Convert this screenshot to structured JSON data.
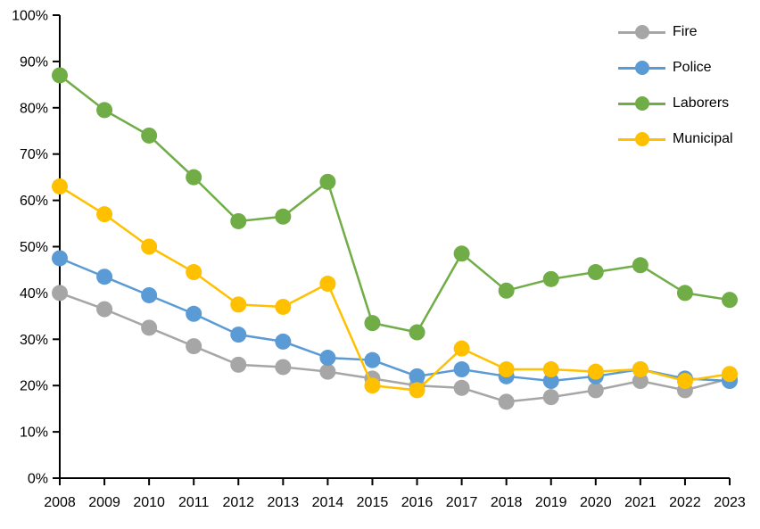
{
  "chart_data": {
    "type": "line",
    "title": "",
    "xlabel": "",
    "ylabel": "",
    "categories": [
      "2008",
      "2009",
      "2010",
      "2011",
      "2012",
      "2013",
      "2014",
      "2015",
      "2016",
      "2017",
      "2018",
      "2019",
      "2020",
      "2021",
      "2022",
      "2023"
    ],
    "y_tick_labels": [
      "0%",
      "10%",
      "20%",
      "30%",
      "40%",
      "50%",
      "60%",
      "70%",
      "80%",
      "90%",
      "100%"
    ],
    "ylim": [
      0,
      100
    ],
    "grid": false,
    "legend_position": "top-right",
    "axis_color": "#000000",
    "series": [
      {
        "name": "Fire",
        "color": "#A6A6A6",
        "values": [
          40,
          36.5,
          32.5,
          28.5,
          24.5,
          24,
          23,
          21.5,
          20,
          19.5,
          16.5,
          17.5,
          19,
          21,
          19,
          21.5
        ]
      },
      {
        "name": "Police",
        "color": "#5B9BD5",
        "values": [
          47.5,
          43.5,
          39.5,
          35.5,
          31,
          29.5,
          26,
          25.5,
          22,
          23.5,
          22,
          21,
          22,
          23.5,
          21.5,
          21
        ]
      },
      {
        "name": "Laborers",
        "color": "#70AD47",
        "values": [
          87,
          79.5,
          74,
          65,
          55.5,
          56.5,
          64,
          33.5,
          31.5,
          48.5,
          40.5,
          43,
          44.5,
          46,
          40,
          38.5
        ]
      },
      {
        "name": "Municipal",
        "color": "#FFC000",
        "values": [
          63,
          57,
          50,
          44.5,
          37.5,
          37,
          42,
          20,
          19,
          28,
          23.5,
          23.5,
          23,
          23.5,
          21,
          22.5
        ]
      }
    ]
  }
}
